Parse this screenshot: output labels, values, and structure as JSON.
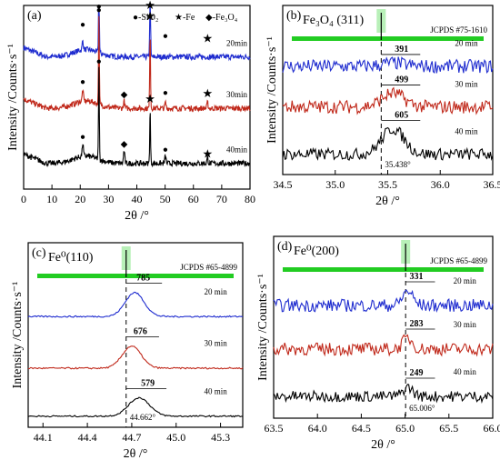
{
  "chart_data": [
    {
      "panel": "(a)",
      "type": "line",
      "xlabel": "2θ /°",
      "ylabel": "Intensity /Counts·s⁻¹",
      "xlim": [
        0,
        80
      ],
      "xticks": [
        0,
        10,
        20,
        30,
        40,
        50,
        60,
        70,
        80
      ],
      "legend": [
        "●-SiO₂",
        "★-Fe",
        "◆-Fe₃O₄"
      ],
      "legend_position": "top-right",
      "series": [
        {
          "name": "20min",
          "color": "#1f2ccf",
          "baseline": 0.72,
          "noise": 0.015,
          "peaks": [
            [
              20.9,
              0.05,
              0.3
            ],
            [
              26.6,
              0.4,
              0.2
            ],
            [
              44.7,
              0.45,
              0.2
            ]
          ]
        },
        {
          "name": "30min",
          "color": "#c0281a",
          "baseline": 0.44,
          "noise": 0.015,
          "peaks": [
            [
              20.9,
              0.06,
              0.3
            ],
            [
              26.6,
              0.47,
              0.2
            ],
            [
              35.5,
              0.04,
              0.3
            ],
            [
              44.7,
              0.43,
              0.2
            ],
            [
              50.1,
              0.03,
              0.3
            ],
            [
              65.0,
              0.03,
              0.3
            ]
          ]
        },
        {
          "name": "40min",
          "color": "#000000",
          "baseline": 0.14,
          "noise": 0.015,
          "peaks": [
            [
              20.9,
              0.07,
              0.3
            ],
            [
              26.6,
              0.5,
              0.2
            ],
            [
              35.5,
              0.07,
              0.3
            ],
            [
              44.7,
              0.3,
              0.2
            ],
            [
              50.1,
              0.04,
              0.3
            ],
            [
              65.0,
              0.03,
              0.3
            ]
          ]
        }
      ],
      "markers": [
        {
          "symbol": "●",
          "x": 20.9,
          "y": 0.88
        },
        {
          "symbol": "●",
          "x": 26.6,
          "y": 0.98
        },
        {
          "symbol": "★",
          "x": 44.7,
          "y": 0.98
        },
        {
          "symbol": "●",
          "x": 50.1,
          "y": 0.82
        },
        {
          "symbol": "★",
          "x": 65.0,
          "y": 0.8
        },
        {
          "symbol": "●",
          "x": 20.9,
          "y": 0.57
        },
        {
          "symbol": "●",
          "x": 26.6,
          "y": 0.96
        },
        {
          "symbol": "◆",
          "x": 35.5,
          "y": 0.5
        },
        {
          "symbol": "★",
          "x": 44.7,
          "y": 0.92
        },
        {
          "symbol": "●",
          "x": 50.1,
          "y": 0.51
        },
        {
          "symbol": "★",
          "x": 65.0,
          "y": 0.5
        },
        {
          "symbol": "●",
          "x": 20.9,
          "y": 0.27
        },
        {
          "symbol": "●",
          "x": 26.6,
          "y": 0.68
        },
        {
          "symbol": "◆",
          "x": 35.5,
          "y": 0.23
        },
        {
          "symbol": "★",
          "x": 44.7,
          "y": 0.47
        },
        {
          "symbol": "●",
          "x": 50.1,
          "y": 0.2
        },
        {
          "symbol": "★",
          "x": 65.0,
          "y": 0.17
        }
      ]
    },
    {
      "panel": "(b)",
      "type": "line",
      "title": "Fe₃O₄ (311)",
      "reference": "JCPDS #75-1610",
      "xlabel": "2θ /°",
      "ylabel": "Intensity /Counts·s⁻¹",
      "xlim": [
        34.5,
        36.5
      ],
      "xticks": [
        34.5,
        35.0,
        35.5,
        36.0,
        36.5
      ],
      "reference_peak": 35.438,
      "peak_annotation": "35.438°",
      "series": [
        {
          "name": "20 min",
          "color": "#1f2ccf",
          "baseline": 0.64,
          "noise": 0.04,
          "peak_label": "391",
          "peaks": [
            [
              35.55,
              0.02,
              0.15
            ]
          ]
        },
        {
          "name": "30 min",
          "color": "#c0281a",
          "baseline": 0.4,
          "noise": 0.04,
          "peak_label": "499",
          "peaks": [
            [
              35.55,
              0.08,
              0.15
            ]
          ]
        },
        {
          "name": "40 min",
          "color": "#000000",
          "baseline": 0.12,
          "noise": 0.035,
          "peak_label": "605",
          "peaks": [
            [
              35.55,
              0.15,
              0.15
            ]
          ]
        }
      ]
    },
    {
      "panel": "(c)",
      "type": "line",
      "title": "Fe⁰(110)",
      "reference": "JCPDS #65-4899",
      "xlabel": "2θ /°",
      "ylabel": "Intensity /Counts·s⁻¹",
      "xlim": [
        44.0,
        45.45
      ],
      "xticks": [
        44.1,
        44.4,
        44.7,
        45.0,
        45.3
      ],
      "reference_peak": 44.662,
      "peak_annotation": "44.662°",
      "series": [
        {
          "name": "20 min",
          "color": "#1f2ccf",
          "baseline": 0.6,
          "noise": 0.004,
          "peak_label": "785",
          "peaks": [
            [
              44.72,
              0.13,
              0.09
            ]
          ]
        },
        {
          "name": "30 min",
          "color": "#c0281a",
          "baseline": 0.32,
          "noise": 0.004,
          "peak_label": "676",
          "peaks": [
            [
              44.7,
              0.12,
              0.09
            ]
          ]
        },
        {
          "name": "40 min",
          "color": "#000000",
          "baseline": 0.06,
          "noise": 0.004,
          "peak_label": "579",
          "peaks": [
            [
              44.75,
              0.1,
              0.1
            ]
          ]
        }
      ]
    },
    {
      "panel": "(d)",
      "type": "line",
      "title": "Fe⁰(200)",
      "reference": "JCPDS #65-4899",
      "xlabel": "2θ /°",
      "ylabel": "Intensity /Counts·s⁻¹",
      "xlim": [
        63.5,
        66.0
      ],
      "xticks": [
        63.5,
        64.0,
        64.5,
        65.0,
        65.5,
        66.0
      ],
      "reference_peak": 65.006,
      "peak_annotation": "65.006°",
      "series": [
        {
          "name": "20 min",
          "color": "#1f2ccf",
          "baseline": 0.62,
          "noise": 0.035,
          "peak_label": "331",
          "peaks": [
            [
              65.03,
              0.08,
              0.08
            ]
          ]
        },
        {
          "name": "30 min",
          "color": "#c0281a",
          "baseline": 0.38,
          "noise": 0.035,
          "peak_label": "283",
          "peaks": [
            [
              65.03,
              0.06,
              0.08
            ]
          ]
        },
        {
          "name": "40 min",
          "color": "#000000",
          "baseline": 0.12,
          "noise": 0.03,
          "peak_label": "249",
          "peaks": [
            [
              65.03,
              0.05,
              0.08
            ]
          ]
        }
      ]
    }
  ],
  "colors": {
    "reference_bar": "#22cc22",
    "highlight": "#b8f0b8"
  }
}
